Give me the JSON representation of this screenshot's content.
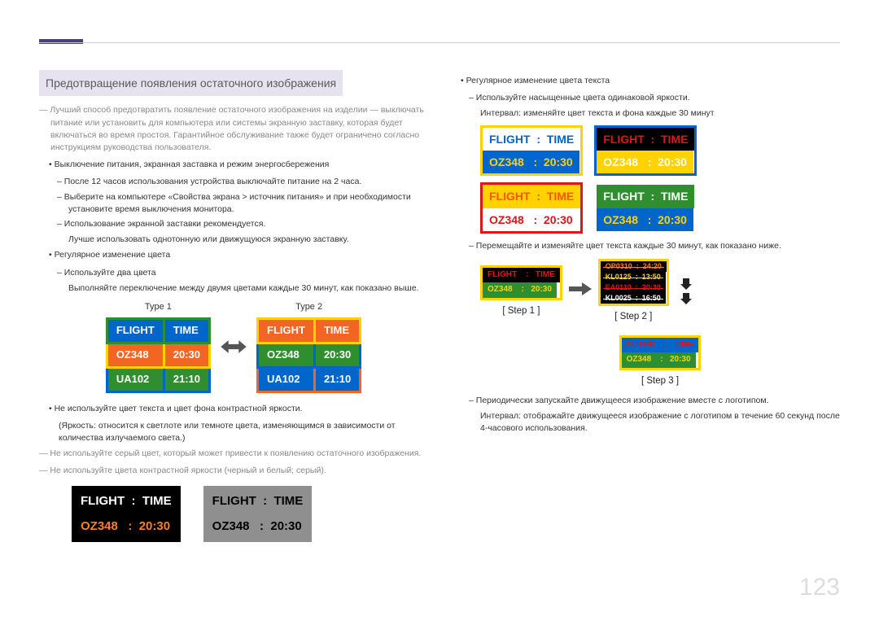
{
  "page_number": "123",
  "heading": "Предотвращение появления остаточного изображения",
  "colors": {
    "white": "#ffffff",
    "black": "#000000",
    "gray_bg": "#8f8f8f",
    "orange": "#f26522",
    "blue": "#0066cc",
    "green": "#2f8f2f",
    "yellow": "#ffd200",
    "red_text": "#e01515",
    "orange_text": "#ff7f20"
  },
  "left": {
    "intro": "Лучший способ предотвратить появление остаточного изображения на изделии — выключать питание или установить для компьютера или системы экранную заставку, которая будет включаться во время простоя. Гарантийное обслуживание также будет ограничено согласно инструкциям руководства пользователя.",
    "b1": "Выключение питания, экранная заставка и режим энергосбережения",
    "b1_d1": "После 12 часов использования устройства выключайте питание на 2 часа.",
    "b1_d2": "Выберите на компьютере «Свойства экрана > источник питания» и при необходимости установите время выключения монитора.",
    "b1_d3": "Использование экранной заставки рекомендуется.",
    "b1_d3_sub": "Лучше использовать однотонную или движущуюся экранную заставку.",
    "b2": "Регулярное изменение цвета",
    "b2_d1": "Используйте два цвета",
    "b2_d1_sub": "Выполняйте переключение между двумя цветами каждые 30 минут, как показано выше.",
    "type1": "Type 1",
    "type2": "Type 2",
    "b3": "Не используйте цвет текста и цвет фона контрастной яркости.",
    "b3_sub": "(Яркость: относится к светлоте или темноте цвета, изменяющимся в зависимости от количества излучаемого света.)",
    "gray1": "Не используйте серый цвет, который может привести к появлению остаточного изображения.",
    "gray2": "Не используйте цвета контрастной яркости (черный и белый; серый).",
    "table_header": {
      "flight": "FLIGHT",
      "time": "TIME"
    },
    "table_rows": [
      {
        "flight": "OZ348",
        "time": "20:30"
      },
      {
        "flight": "UA102",
        "time": "21:10"
      }
    ],
    "bottom_board_a": {
      "bg": "#000000",
      "row1_text": "#ffffff",
      "row2_text": "#ff7f20",
      "row1": "FLIGHT  :  TIME",
      "row2": "OZ348   :  20:30"
    },
    "bottom_board_b": {
      "bg": "#8f8f8f",
      "row1_text": "#000000",
      "row2_text": "#000000",
      "row1": "FLIGHT  :  TIME",
      "row2": "OZ348   :  20:30"
    }
  },
  "right": {
    "b1": "Регулярное изменение цвета текста",
    "b1_d1": "Используйте насыщенные цвета одинаковой яркости.",
    "b1_d1_sub": "Интервал: изменяйте цвет текста и фона каждые 30 минут",
    "quad": {
      "row1": "FLIGHT  :  TIME",
      "row2": "OZ348   :  20:30",
      "a": {
        "border": "#ffd200",
        "bg1": "#ffffff",
        "t1": "#0066cc",
        "bg2": "#0066cc",
        "t2": "#ffd200"
      },
      "b": {
        "border": "#0066cc",
        "bg1": "#000000",
        "t1": "#e01515",
        "bg2": "#ffd200",
        "t2": "#ffffff"
      },
      "c": {
        "border": "#e01515",
        "bg1": "#ffd200",
        "t1": "#ff5500",
        "bg2": "#ffffff",
        "t2": "#e01515"
      },
      "d": {
        "border": "#ffffff",
        "bg1": "#2f8f2f",
        "t1": "#ffffff",
        "bg2": "#0066cc",
        "t2": "#ffd200"
      }
    },
    "b1_d2": "Перемещайте и изменяйте цвет текста каждые 30 минут, как показано ниже.",
    "step1": {
      "label": "[ Step 1 ]",
      "border": "#ffd200",
      "row1_bg": "#000000",
      "row1_t": "#e01515",
      "row1": "FLIGHT    :   TIME",
      "row2_bg": "#2f8f2f",
      "row2_t": "#ffd200",
      "row2": "OZ348    :   20:30"
    },
    "step2": {
      "label": "[ Step 2 ]",
      "border": "#ffd200",
      "row_bg": "#000000",
      "rows": [
        {
          "text": "OP0310  :  24:20",
          "color": "#ff7f20"
        },
        {
          "text": "KL0125  :  13:50",
          "color": "#ffd200"
        },
        {
          "text": "EA0110  :  20:30",
          "color": "#e01515"
        },
        {
          "text": "KL0025  :  16:50",
          "color": "#ffffff"
        }
      ]
    },
    "step3": {
      "label": "[ Step 3 ]",
      "border": "#ffd200",
      "row1_bg": "#0066cc",
      "row1_t": "#e01515",
      "row1": "FLIGHT    :   TIME",
      "row2_bg": "#2f8f2f",
      "row2_t": "#ffd200",
      "row2": "OZ348    :   20:30"
    },
    "b1_d3": "Периодически запускайте движущееся изображение вместе с логотипом.",
    "b1_d3_sub": "Интервал: отображайте движущееся изображение с логотипом в течение 60 секунд после 4-часового использования."
  }
}
